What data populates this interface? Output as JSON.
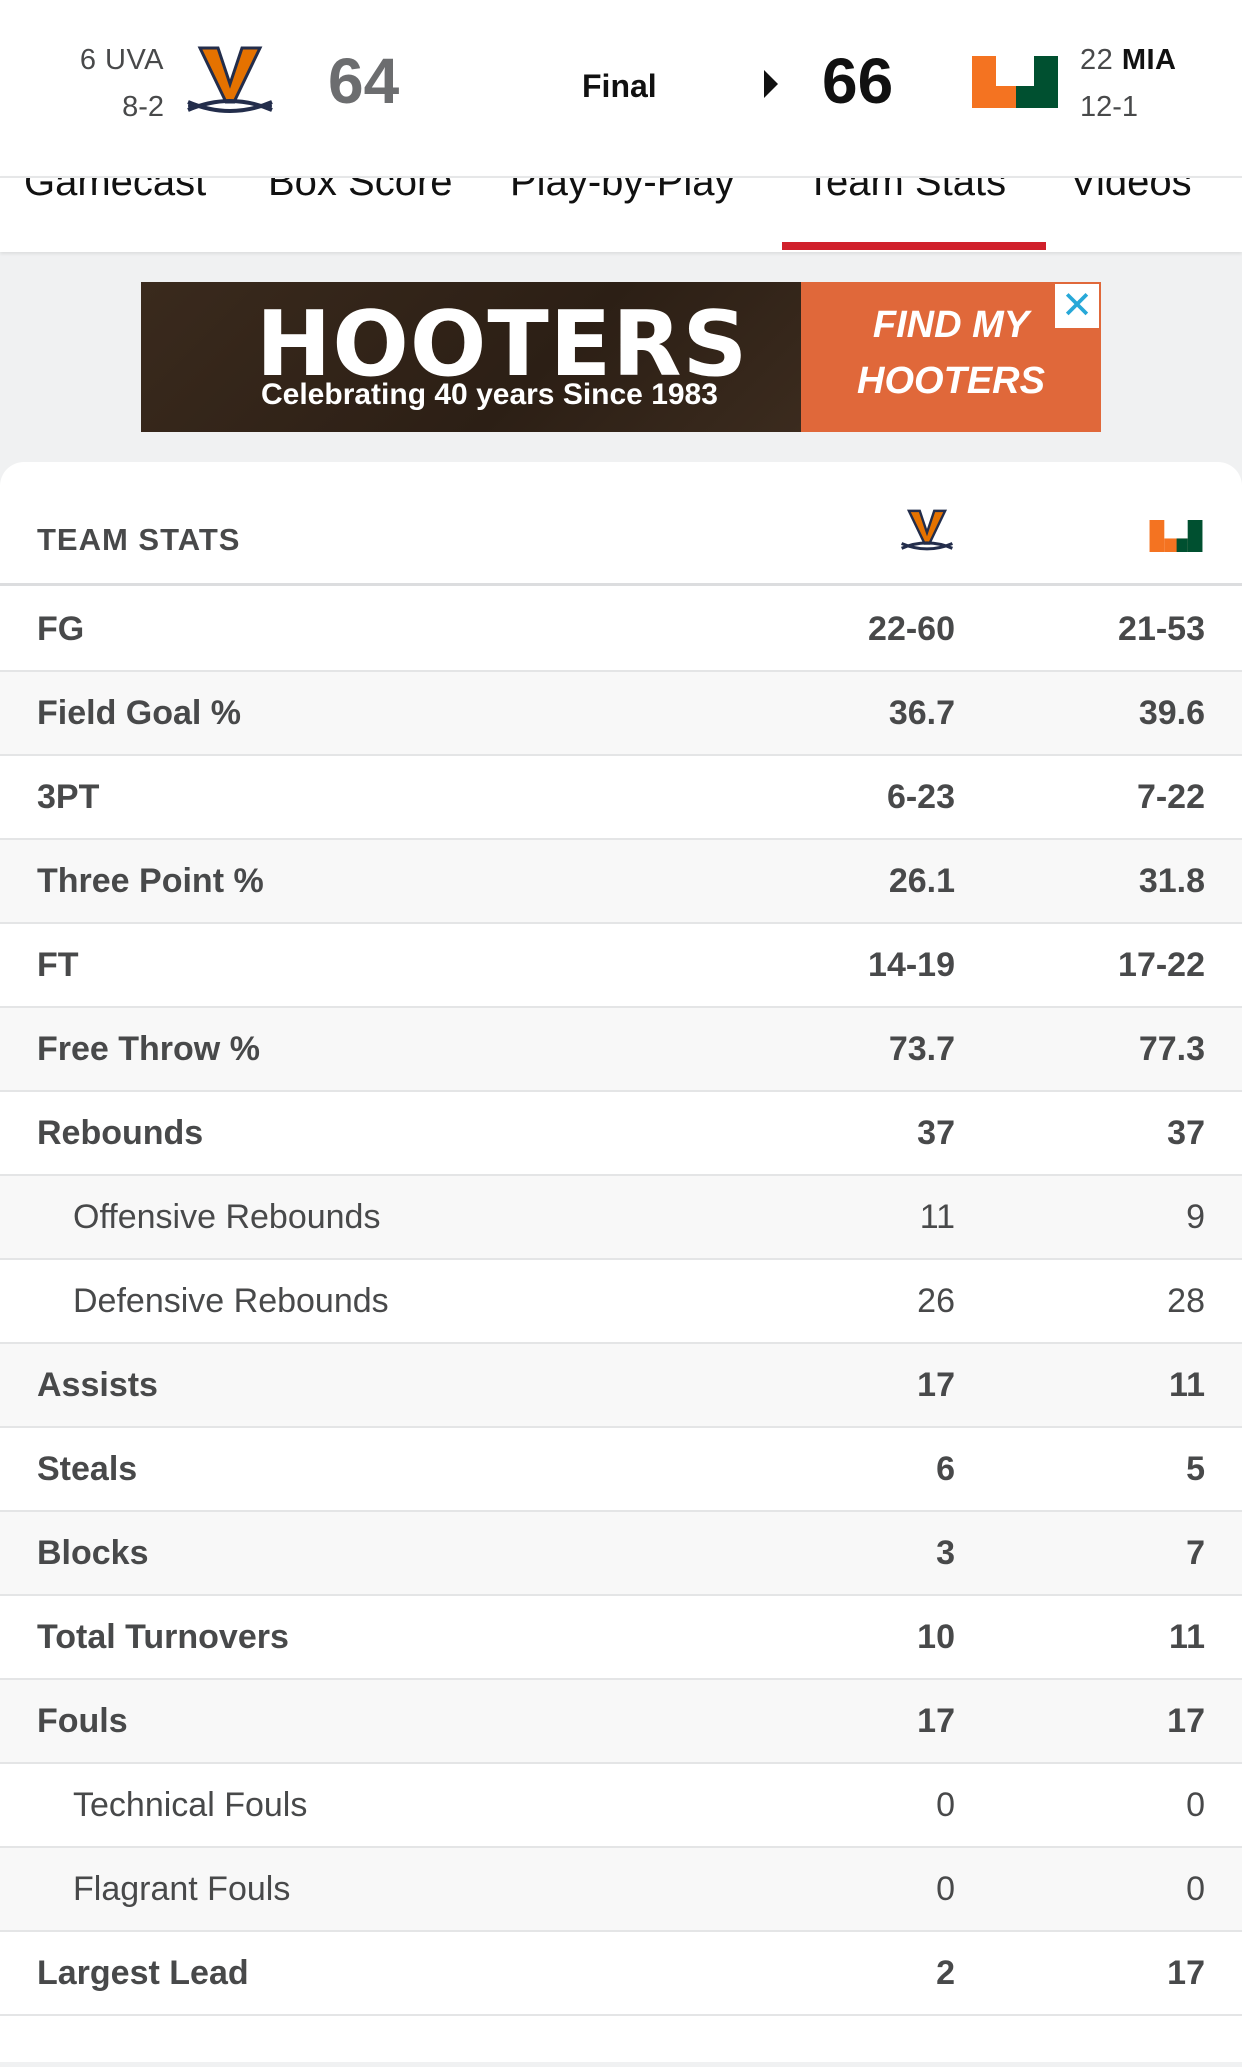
{
  "header": {
    "away": {
      "rank": "6",
      "abbr": "UVA",
      "record": "8-2",
      "score": "64",
      "logo": "uva-logo-icon"
    },
    "home": {
      "rank": "22",
      "abbr": "MIA",
      "record": "12-1",
      "score": "66",
      "logo": "mia-logo-icon"
    },
    "status": "Final"
  },
  "tabs": [
    {
      "label": "Gamecast"
    },
    {
      "label": "Box Score"
    },
    {
      "label": "Play-by-Play"
    },
    {
      "label": "Team Stats",
      "active": true
    },
    {
      "label": "Videos"
    }
  ],
  "ad": {
    "brand": "HOOTERS",
    "tagline": "Celebrating 40 years Since 1983",
    "cta_line1": "FIND MY",
    "cta_line2": "HOOTERS",
    "close": "✕"
  },
  "stats": {
    "title": "TEAM STATS",
    "rows": [
      {
        "label": "FG",
        "away": "22-60",
        "home": "21-53"
      },
      {
        "label": "Field Goal %",
        "away": "36.7",
        "home": "39.6"
      },
      {
        "label": "3PT",
        "away": "6-23",
        "home": "7-22"
      },
      {
        "label": "Three Point %",
        "away": "26.1",
        "home": "31.8"
      },
      {
        "label": "FT",
        "away": "14-19",
        "home": "17-22"
      },
      {
        "label": "Free Throw %",
        "away": "73.7",
        "home": "77.3"
      },
      {
        "label": "Rebounds",
        "away": "37",
        "home": "37"
      },
      {
        "label": "Offensive Rebounds",
        "away": "11",
        "home": "9"
      },
      {
        "label": "Defensive Rebounds",
        "away": "26",
        "home": "28"
      },
      {
        "label": "Assists",
        "away": "17",
        "home": "11"
      },
      {
        "label": "Steals",
        "away": "6",
        "home": "5"
      },
      {
        "label": "Blocks",
        "away": "3",
        "home": "7"
      },
      {
        "label": "Total Turnovers",
        "away": "10",
        "home": "11"
      },
      {
        "label": "Fouls",
        "away": "17",
        "home": "17"
      },
      {
        "label": "Technical Fouls",
        "away": "0",
        "home": "0"
      },
      {
        "label": "Flagrant Fouls",
        "away": "0",
        "home": "0"
      },
      {
        "label": "Largest Lead",
        "away": "2",
        "home": "17"
      }
    ]
  },
  "colors": {
    "accent": "#d0202b",
    "uva_orange": "#e57200",
    "uva_navy": "#232d4b",
    "mia_orange": "#f47321",
    "mia_green": "#005030"
  }
}
